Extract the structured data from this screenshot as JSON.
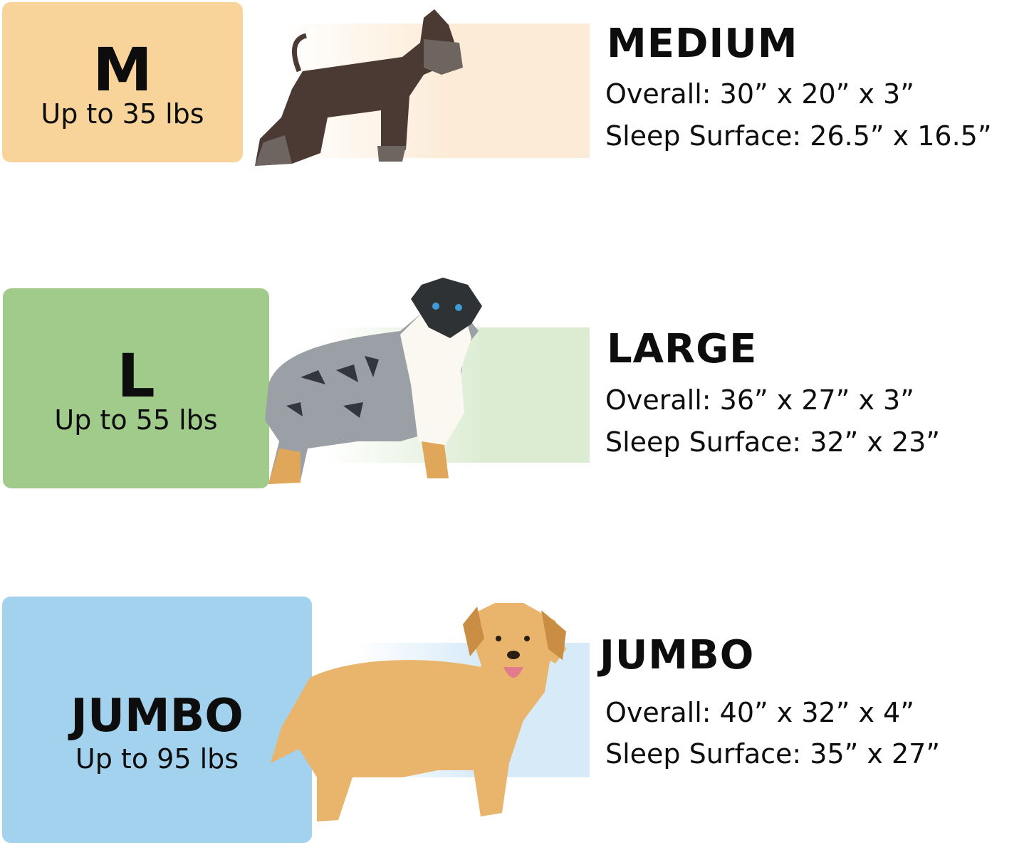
{
  "sizes": [
    {
      "letter": "M",
      "weight": "Up to 35 lbs",
      "name": "MEDIUM",
      "overall": "Overall: 30” x 20” x 3”",
      "sleep": "Sleep Surface: 26.5” x 16.5”",
      "color": "#f8d49a",
      "band_color": "#fcebd6",
      "dog": "schnauzer"
    },
    {
      "letter": "L",
      "weight": "Up to 55 lbs",
      "name": "LARGE",
      "overall": "Overall: 36” x 27” x 3”",
      "sleep": "Sleep Surface: 32” x 23”",
      "color": "#a0cb8b",
      "band_color": "#dcecd3",
      "dog": "australian-shepherd"
    },
    {
      "letter": "JUMBO",
      "weight": "Up to 95 lbs",
      "name": "JUMBO",
      "overall": "Overall: 40” x 32” x 4”",
      "sleep": "Sleep Surface: 35” x 27”",
      "color": "#a3d2ee",
      "band_color": "#d6eaf8",
      "dog": "golden-retriever"
    }
  ]
}
